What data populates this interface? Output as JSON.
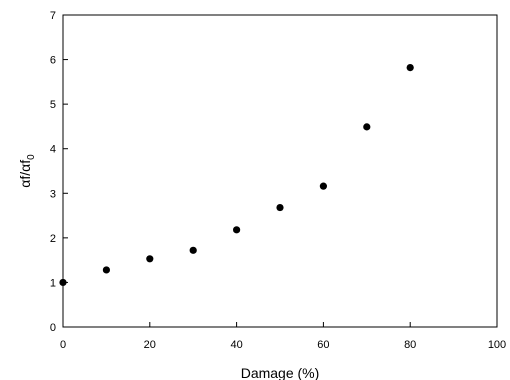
{
  "chart_data": {
    "type": "scatter",
    "title": "",
    "xlabel": "Damage (%)",
    "ylabel_main": "αf/αf",
    "ylabel_sub": "0",
    "xlim": [
      0,
      100
    ],
    "ylim": [
      0,
      7
    ],
    "xticks": [
      0,
      20,
      40,
      60,
      80,
      100
    ],
    "yticks": [
      0,
      1,
      2,
      3,
      4,
      5,
      6,
      7
    ],
    "grid": false,
    "series": [
      {
        "x": [
          0,
          10,
          20,
          30,
          40,
          50,
          60,
          70,
          80
        ],
        "y": [
          1.0,
          1.28,
          1.53,
          1.72,
          2.18,
          2.68,
          3.16,
          4.49,
          5.82
        ]
      }
    ]
  }
}
